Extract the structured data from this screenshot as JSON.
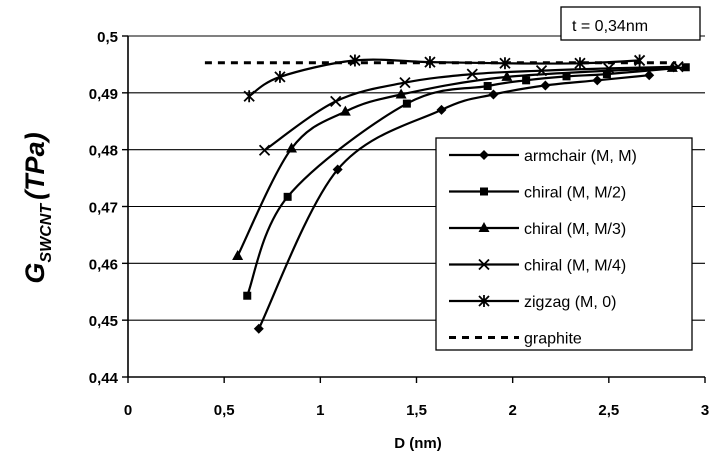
{
  "chart_data": {
    "type": "line",
    "title": "",
    "annotation": "t = 0,34nm",
    "xlabel": "D (nm)",
    "ylabel": {
      "base": "G",
      "subscript": "SWCNT",
      "unit": "(TPa)"
    },
    "xlim": [
      0,
      3
    ],
    "ylim": [
      0.44,
      0.5
    ],
    "x_ticks": [
      {
        "value": 0,
        "label": "0"
      },
      {
        "value": 0.5,
        "label": "0,5"
      },
      {
        "value": 1,
        "label": "1"
      },
      {
        "value": 1.5,
        "label": "1,5"
      },
      {
        "value": 2,
        "label": "2"
      },
      {
        "value": 2.5,
        "label": "2,5"
      },
      {
        "value": 3,
        "label": "3"
      }
    ],
    "y_ticks": [
      {
        "value": 0.44,
        "label": "0,44"
      },
      {
        "value": 0.45,
        "label": "0,45"
      },
      {
        "value": 0.46,
        "label": "0,46"
      },
      {
        "value": 0.47,
        "label": "0,47"
      },
      {
        "value": 0.48,
        "label": "0,48"
      },
      {
        "value": 0.49,
        "label": "0,49"
      },
      {
        "value": 0.5,
        "label": "0,5"
      }
    ],
    "grid": "horizontal",
    "legend_position": "right",
    "series": [
      {
        "name": "armchair (M, M)",
        "marker": "diamond",
        "x": [
          0.68,
          1.09,
          1.63,
          1.9,
          2.17,
          2.44,
          2.71
        ],
        "y": [
          0.4485,
          0.4765,
          0.487,
          0.4897,
          0.4913,
          0.4922,
          0.4931
        ]
      },
      {
        "name": "chiral (M, M/2)",
        "marker": "square",
        "x": [
          0.62,
          0.83,
          1.45,
          1.87,
          2.07,
          2.28,
          2.49,
          2.9
        ],
        "y": [
          0.4543,
          0.4717,
          0.4881,
          0.4912,
          0.4922,
          0.4929,
          0.4933,
          0.4945
        ]
      },
      {
        "name": "chiral (M, M/3)",
        "marker": "triangle",
        "x": [
          0.57,
          0.85,
          1.13,
          1.42,
          1.97,
          2.83
        ],
        "y": [
          0.4613,
          0.4802,
          0.4867,
          0.4897,
          0.4928,
          0.4944
        ]
      },
      {
        "name": "chiral (M, M/4)",
        "marker": "x",
        "x": [
          0.71,
          1.08,
          1.44,
          1.79,
          2.15,
          2.5,
          2.86
        ],
        "y": [
          0.4799,
          0.4885,
          0.4918,
          0.4933,
          0.4939,
          0.4943,
          0.4946
        ]
      },
      {
        "name": "zigzag (M, 0)",
        "marker": "asterisk",
        "x": [
          0.63,
          0.79,
          1.18,
          1.57,
          1.96,
          2.35,
          2.66
        ],
        "y": [
          0.4894,
          0.4928,
          0.4957,
          0.4954,
          0.4952,
          0.4952,
          0.4957
        ]
      },
      {
        "name": "graphite",
        "marker": "none",
        "dashed": true,
        "x": [
          0.4,
          2.85
        ],
        "y": [
          0.4953,
          0.4953
        ]
      }
    ]
  }
}
